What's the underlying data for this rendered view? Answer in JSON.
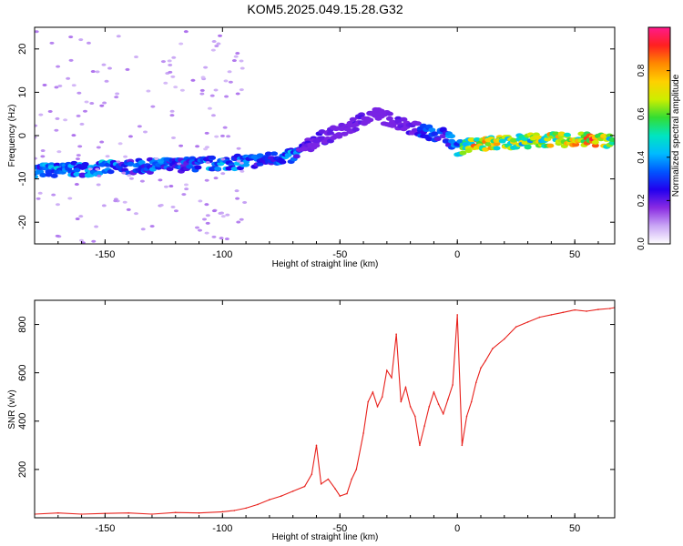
{
  "figure": {
    "title": "KOM5.2025.049.15.28.G32"
  },
  "chart_data": [
    {
      "type": "heatmap",
      "xlabel": "Height of straight line (km)",
      "ylabel": "Frequency (Hz)",
      "xlim": [
        -180,
        67
      ],
      "ylim": [
        -25,
        25
      ],
      "xticks": [
        -150,
        -100,
        -50,
        0,
        50
      ],
      "yticks": [
        -20,
        -10,
        0,
        10,
        20
      ],
      "colorbar": {
        "label": "Normalized spectral amplitude",
        "range": [
          0,
          1
        ],
        "ticks": [
          0.0,
          0.2,
          0.4,
          0.6,
          0.8
        ],
        "colors": [
          "#ffffff",
          "#c9a6f5",
          "#8a2be2",
          "#2200ee",
          "#0055ff",
          "#00bbff",
          "#00e5c0",
          "#33dd33",
          "#ccee00",
          "#ffd000",
          "#ff8800",
          "#ff2020",
          "#ff1a8c"
        ]
      },
      "ridge": {
        "x": [
          -180,
          -170,
          -160,
          -150,
          -140,
          -130,
          -120,
          -110,
          -100,
          -90,
          -80,
          -75,
          -70,
          -65,
          -60,
          -55,
          -50,
          -45,
          -40,
          -35,
          -30,
          -25,
          -20,
          -15,
          -10,
          -5,
          0,
          5,
          10,
          20,
          30,
          40,
          50,
          60,
          67
        ],
        "freq": [
          -8,
          -8,
          -7.8,
          -7.5,
          -7.3,
          -7,
          -6.8,
          -6.6,
          -6.4,
          -6,
          -5.5,
          -5,
          -4.8,
          -3,
          -1,
          0,
          1,
          2,
          4,
          5,
          4,
          3,
          2,
          1,
          0.5,
          0.2,
          -3,
          -2.2,
          -2,
          -1.5,
          -1.2,
          -1,
          -1,
          -1,
          -1.2
        ],
        "amplitude": [
          0.35,
          0.4,
          0.35,
          0.4,
          0.3,
          0.35,
          0.3,
          0.35,
          0.4,
          0.35,
          0.3,
          0.35,
          0.4,
          0.2,
          0.2,
          0.2,
          0.15,
          0.2,
          0.2,
          0.15,
          0.15,
          0.2,
          0.2,
          0.3,
          0.35,
          0.3,
          0.45,
          0.7,
          0.8,
          0.65,
          0.6,
          0.7,
          0.75,
          0.8,
          0.6
        ]
      }
    },
    {
      "type": "line",
      "xlabel": "Height of straight line (km)",
      "ylabel": "SNR (v/v)",
      "xlim": [
        -180,
        67
      ],
      "ylim": [
        0,
        900
      ],
      "xticks": [
        -150,
        -100,
        -50,
        0,
        50
      ],
      "yticks": [
        200,
        400,
        600,
        800
      ],
      "series": [
        {
          "color": "#e8211c",
          "x": [
            -180,
            -170,
            -160,
            -150,
            -140,
            -130,
            -120,
            -110,
            -100,
            -95,
            -90,
            -85,
            -80,
            -75,
            -70,
            -65,
            -62,
            -60,
            -58,
            -55,
            -52,
            -50,
            -47,
            -45,
            -43,
            -40,
            -38,
            -36,
            -34,
            -32,
            -30,
            -28,
            -26,
            -24,
            -22,
            -20,
            -18,
            -16,
            -14,
            -12,
            -10,
            -8,
            -6,
            -4,
            -2,
            0,
            2,
            4,
            6,
            8,
            10,
            12,
            15,
            20,
            25,
            30,
            35,
            40,
            45,
            50,
            55,
            60,
            65,
            67
          ],
          "y": [
            15,
            20,
            15,
            18,
            20,
            15,
            22,
            20,
            25,
            30,
            40,
            55,
            75,
            90,
            110,
            130,
            180,
            300,
            140,
            160,
            120,
            90,
            100,
            160,
            200,
            350,
            480,
            520,
            460,
            500,
            610,
            580,
            760,
            480,
            540,
            460,
            420,
            300,
            380,
            460,
            520,
            470,
            430,
            490,
            550,
            840,
            300,
            420,
            480,
            560,
            620,
            650,
            700,
            740,
            790,
            810,
            830,
            840,
            850,
            860,
            855,
            862,
            866,
            870
          ]
        }
      ]
    }
  ]
}
